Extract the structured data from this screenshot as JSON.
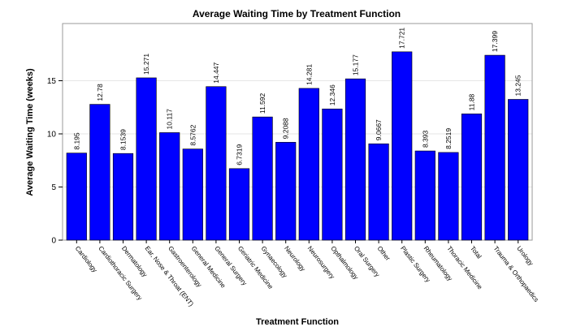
{
  "chart_data": {
    "type": "bar",
    "title": "Average Waiting Time by Treatment Function",
    "xlabel": "Treatment Function",
    "ylabel": "Average Waiting Time (weeks)",
    "ylim": [
      0,
      20
    ],
    "yticks": [
      0,
      5,
      10,
      15
    ],
    "grid": "horizontal",
    "bar_color": "#0000ff",
    "categories": [
      "Cardiology",
      "Cardiothoracic Surgery",
      "Dermatology",
      "Ear, Nose & Throat (ENT)",
      "Gastroenterology",
      "General Medicine",
      "General Surgery",
      "Geriatric Medicine",
      "Gynaecology",
      "Neurology",
      "Neurosurgery",
      "Opthalmology",
      "Oral Surgery",
      "Other",
      "Plastic Surgery",
      "Rheumatology",
      "Thoracic Medicine",
      "Total",
      "Trauma & Orthopaedics",
      "Urology"
    ],
    "values": [
      8.195,
      12.78,
      8.1539,
      15.271,
      10.117,
      8.5762,
      14.447,
      6.7319,
      11.592,
      9.2088,
      14.281,
      12.346,
      15.177,
      9.0667,
      17.721,
      8.393,
      8.2519,
      11.88,
      17.399,
      13.245
    ],
    "value_labels": [
      "8.195",
      "12.78",
      "8.1539",
      "15.271",
      "10.117",
      "8.5762",
      "14.447",
      "6.7319",
      "11.592",
      "9.2088",
      "14.281",
      "12.346",
      "15.177",
      "9.0667",
      "17.721",
      "8.393",
      "8.2519",
      "11.88",
      "17.399",
      "13.245"
    ]
  }
}
